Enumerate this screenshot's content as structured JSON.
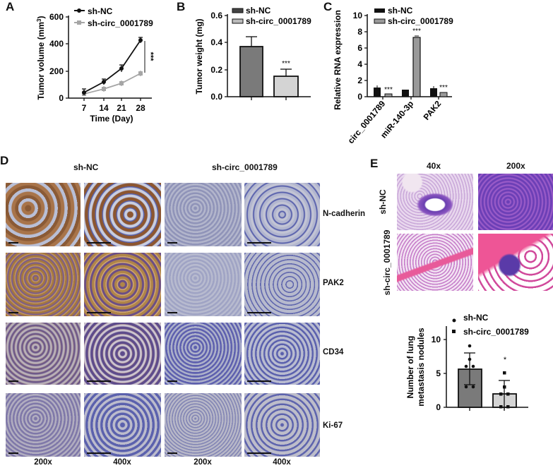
{
  "panels": {
    "A": "A",
    "B": "B",
    "C": "C",
    "D": "D",
    "E": "E"
  },
  "chart_data": [
    {
      "id": "A",
      "type": "line",
      "title": "",
      "xlabel": "Time (Day)",
      "ylabel": "Tumor volume (mm³)",
      "x": [
        7,
        14,
        21,
        28
      ],
      "ylim": [
        0,
        600
      ],
      "yticks": [
        0,
        200,
        400,
        600
      ],
      "series": [
        {
          "name": "sh-NC",
          "values": [
            42,
            118,
            220,
            428
          ],
          "errors": [
            22,
            22,
            28,
            22
          ],
          "color": "#111111",
          "marker": "circle"
        },
        {
          "name": "sh-circ_0001789",
          "values": [
            30,
            68,
            110,
            182
          ],
          "errors": [
            15,
            20,
            20,
            22
          ],
          "color": "#a6a6a6",
          "marker": "square"
        }
      ],
      "annotation": "***",
      "legend_position": "top"
    },
    {
      "id": "B",
      "type": "bar",
      "title": "",
      "xlabel": "",
      "ylabel": "Tumor weight (mg)",
      "categories": [
        "sh-NC",
        "sh-circ_0001789"
      ],
      "values": [
        0.37,
        0.15
      ],
      "errors": [
        0.075,
        0.053
      ],
      "colors": [
        "#7a7a7a",
        "#d4d4d4"
      ],
      "ylim": [
        0,
        0.6
      ],
      "yticks": [
        "0.0",
        "0.2",
        "0.4",
        "0.6"
      ],
      "annotations": [
        "",
        "***"
      ],
      "legend_position": "top"
    },
    {
      "id": "C",
      "type": "bar",
      "title": "",
      "xlabel": "",
      "ylabel": "Relative RNA expression",
      "categories": [
        "circ_0001789",
        "miR-140-3p",
        "PAK2"
      ],
      "series": [
        {
          "name": "sh-NC",
          "values": [
            1.1,
            0.9,
            1.05
          ],
          "errors": [
            0.2,
            0.1,
            0.15
          ],
          "color": "#111111"
        },
        {
          "name": "sh-circ_0001789",
          "values": [
            0.3,
            7.3,
            0.55
          ],
          "errors": [
            0.05,
            0.2,
            0.08
          ],
          "color": "#9a9a9a"
        }
      ],
      "ylim": [
        0,
        10
      ],
      "yticks": [
        0,
        2,
        4,
        6,
        8,
        10
      ],
      "annotations": [
        "***",
        "***",
        "***"
      ],
      "legend_position": "top"
    },
    {
      "id": "E",
      "type": "bar",
      "title": "",
      "xlabel": "",
      "ylabel": "Number of lung metastasis nodules",
      "categories": [
        "sh-NC",
        "sh-circ_0001789"
      ],
      "values": [
        5.67,
        2.0
      ],
      "errors": [
        2.33,
        1.9
      ],
      "points": [
        [
          9,
          7,
          6,
          6,
          3,
          3
        ],
        [
          5,
          3,
          2,
          2,
          0,
          0
        ]
      ],
      "colors": [
        "#7a7a7a",
        "#d4d4d4"
      ],
      "ylim": [
        0,
        12
      ],
      "yticks": [
        0,
        5,
        10
      ],
      "annotations": [
        "",
        "*"
      ],
      "legend_position": "top"
    }
  ],
  "legend": {
    "nc": "sh-NC",
    "kd": "sh-circ_0001789"
  },
  "labels": {
    "a_ylabel": "Tumor volume (mm",
    "a_sup": "3",
    "a_close": ")",
    "a_xlabel": "Time (Day)",
    "a_sig": "***",
    "b_ylabel": "Tumor weight (mg)",
    "b_sig": "***",
    "c_ylabel": "Relative RNA expression",
    "c_sig": "***",
    "e_ylabel1": "Number of lung",
    "e_ylabel2": "metastasis nodules",
    "e_sig": "*"
  },
  "panelD": {
    "headers": [
      "sh-NC",
      "sh-circ_0001789"
    ],
    "rows": [
      "N-cadherin",
      "PAK2",
      "CD34",
      "Ki-67"
    ],
    "magnifications": [
      "200x",
      "400x",
      "200x",
      "400x"
    ]
  },
  "panelE": {
    "col_headers": [
      "40x",
      "200x"
    ],
    "row_labels": [
      "sh-NC",
      "sh-circ_0001789"
    ]
  }
}
